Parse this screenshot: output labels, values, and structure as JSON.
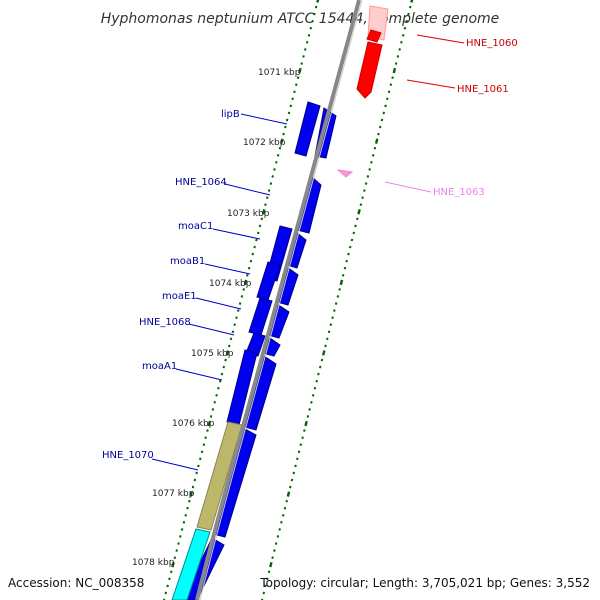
{
  "title": "Hyphomonas neptunium ATCC 15444, complete genome",
  "footer": {
    "accession": "Accession: NC_008358",
    "topology": "Topology: circular; Length: 3,705,021 bp; Genes: 3,552"
  },
  "colors": {
    "backbone": "#888888",
    "cds": "#0000ee",
    "cds_outline": "#00008b",
    "highlight_red": "#ff0000",
    "highlight_pink": "#ffb6c1",
    "khaki": "#bdb76b",
    "cyan": "#00ffff",
    "tick_green": "#006400",
    "label_blue": "#000099",
    "label_red": "#cc0000",
    "label_pink": "#ee82ee"
  },
  "ticks": [
    "1071 kbp",
    "1072 kbp",
    "1073 kbp",
    "1074 kbp",
    "1075 kbp",
    "1076 kbp",
    "1077 kbp",
    "1078 kbp"
  ],
  "gene_labels": [
    {
      "text": "HNE_1060",
      "color": "red"
    },
    {
      "text": "HNE_1061",
      "color": "red"
    },
    {
      "text": "lipB",
      "color": "blue"
    },
    {
      "text": "HNE_1063",
      "color": "pink"
    },
    {
      "text": "HNE_1064",
      "color": "blue"
    },
    {
      "text": "moaC1",
      "color": "blue"
    },
    {
      "text": "moaB1",
      "color": "blue"
    },
    {
      "text": "moaE1",
      "color": "blue"
    },
    {
      "text": "HNE_1068",
      "color": "blue"
    },
    {
      "text": "moaA1",
      "color": "blue"
    },
    {
      "text": "HNE_1070",
      "color": "blue"
    }
  ]
}
